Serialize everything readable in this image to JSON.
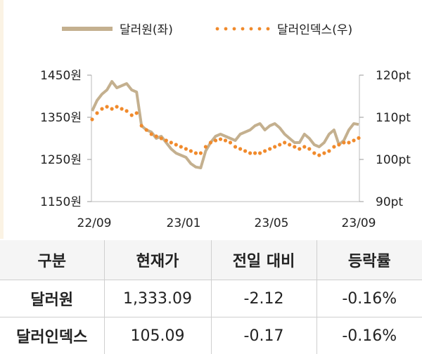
{
  "chart_data": {
    "type": "line",
    "legend": [
      {
        "name": "달러원(좌)",
        "style": "solid",
        "color": "#c4b08f"
      },
      {
        "name": "달러인덱스(우)",
        "style": "dotted",
        "color": "#f08a2c"
      }
    ],
    "x_tick_labels": [
      "22/09",
      "23/01",
      "23/05",
      "23/09"
    ],
    "y_left_ticks": [
      "1450원",
      "1350원",
      "1250원",
      "1150원"
    ],
    "y_left_range": [
      1150,
      1450
    ],
    "y_right_ticks": [
      "120pt",
      "110pt",
      "100pt",
      "90pt"
    ],
    "y_right_range": [
      90,
      120
    ],
    "grid": false,
    "series": [
      {
        "name": "달러원(좌)",
        "axis": "left",
        "x": [
          "2022-09-01",
          "2022-09-08",
          "2022-09-15",
          "2022-09-22",
          "2022-09-29",
          "2022-10-06",
          "2022-10-13",
          "2022-10-20",
          "2022-10-27",
          "2022-11-03",
          "2022-11-10",
          "2022-11-17",
          "2022-11-24",
          "2022-12-01",
          "2022-12-08",
          "2022-12-15",
          "2022-12-22",
          "2022-12-29",
          "2023-01-05",
          "2023-01-12",
          "2023-01-19",
          "2023-01-26",
          "2023-02-02",
          "2023-02-09",
          "2023-02-16",
          "2023-02-23",
          "2023-03-02",
          "2023-03-09",
          "2023-03-16",
          "2023-03-23",
          "2023-03-30",
          "2023-04-06",
          "2023-04-13",
          "2023-04-20",
          "2023-04-27",
          "2023-05-04",
          "2023-05-11",
          "2023-05-18",
          "2023-05-25",
          "2023-06-01",
          "2023-06-08",
          "2023-06-15",
          "2023-06-22",
          "2023-06-29",
          "2023-07-06",
          "2023-07-13",
          "2023-07-20",
          "2023-07-27",
          "2023-08-03",
          "2023-08-10",
          "2023-08-17",
          "2023-08-24",
          "2023-08-31",
          "2023-09-07",
          "2023-09-14"
        ],
        "values": [
          1365,
          1390,
          1405,
          1415,
          1435,
          1420,
          1425,
          1430,
          1415,
          1410,
          1330,
          1320,
          1315,
          1300,
          1305,
          1290,
          1275,
          1265,
          1260,
          1255,
          1240,
          1232,
          1230,
          1270,
          1290,
          1305,
          1310,
          1305,
          1300,
          1295,
          1310,
          1315,
          1320,
          1330,
          1335,
          1320,
          1330,
          1335,
          1325,
          1310,
          1300,
          1290,
          1290,
          1310,
          1300,
          1285,
          1280,
          1290,
          1310,
          1320,
          1285,
          1295,
          1320,
          1335,
          1333
        ]
      },
      {
        "name": "달러인덱스(우)",
        "axis": "right",
        "x": [
          "2022-09-01",
          "2022-09-08",
          "2022-09-15",
          "2022-09-22",
          "2022-09-29",
          "2022-10-06",
          "2022-10-13",
          "2022-10-20",
          "2022-10-27",
          "2022-11-03",
          "2022-11-10",
          "2022-11-17",
          "2022-11-24",
          "2022-12-01",
          "2022-12-08",
          "2022-12-15",
          "2022-12-22",
          "2022-12-29",
          "2023-01-05",
          "2023-01-12",
          "2023-01-19",
          "2023-01-26",
          "2023-02-02",
          "2023-02-09",
          "2023-02-16",
          "2023-02-23",
          "2023-03-02",
          "2023-03-09",
          "2023-03-16",
          "2023-03-23",
          "2023-03-30",
          "2023-04-06",
          "2023-04-13",
          "2023-04-20",
          "2023-04-27",
          "2023-05-04",
          "2023-05-11",
          "2023-05-18",
          "2023-05-25",
          "2023-06-01",
          "2023-06-08",
          "2023-06-15",
          "2023-06-22",
          "2023-06-29",
          "2023-07-06",
          "2023-07-13",
          "2023-07-20",
          "2023-07-27",
          "2023-08-03",
          "2023-08-10",
          "2023-08-17",
          "2023-08-24",
          "2023-08-31",
          "2023-09-07",
          "2023-09-14"
        ],
        "values": [
          109.5,
          111.0,
          112.0,
          112.5,
          112.0,
          112.5,
          112.0,
          111.5,
          110.5,
          111.0,
          108.0,
          107.0,
          106.0,
          105.5,
          105.0,
          104.5,
          104.0,
          103.5,
          103.0,
          102.5,
          102.0,
          101.5,
          101.5,
          103.0,
          104.0,
          104.5,
          104.8,
          104.5,
          104.0,
          103.0,
          102.5,
          102.0,
          101.5,
          101.5,
          101.5,
          102.0,
          102.5,
          103.0,
          103.5,
          104.0,
          103.5,
          103.0,
          102.5,
          103.0,
          102.5,
          101.5,
          101.0,
          101.5,
          102.0,
          103.0,
          103.5,
          104.0,
          104.0,
          104.5,
          105.09
        ]
      }
    ]
  },
  "table": {
    "headers": [
      "구분",
      "현재가",
      "전일 대비",
      "등락률"
    ],
    "rows": [
      {
        "name": "달러원",
        "current": "1,333.09",
        "change": "-2.12",
        "rate": "-0.16%"
      },
      {
        "name": "달러인덱스",
        "current": "105.09",
        "change": "-0.17",
        "rate": "-0.16%"
      }
    ]
  }
}
